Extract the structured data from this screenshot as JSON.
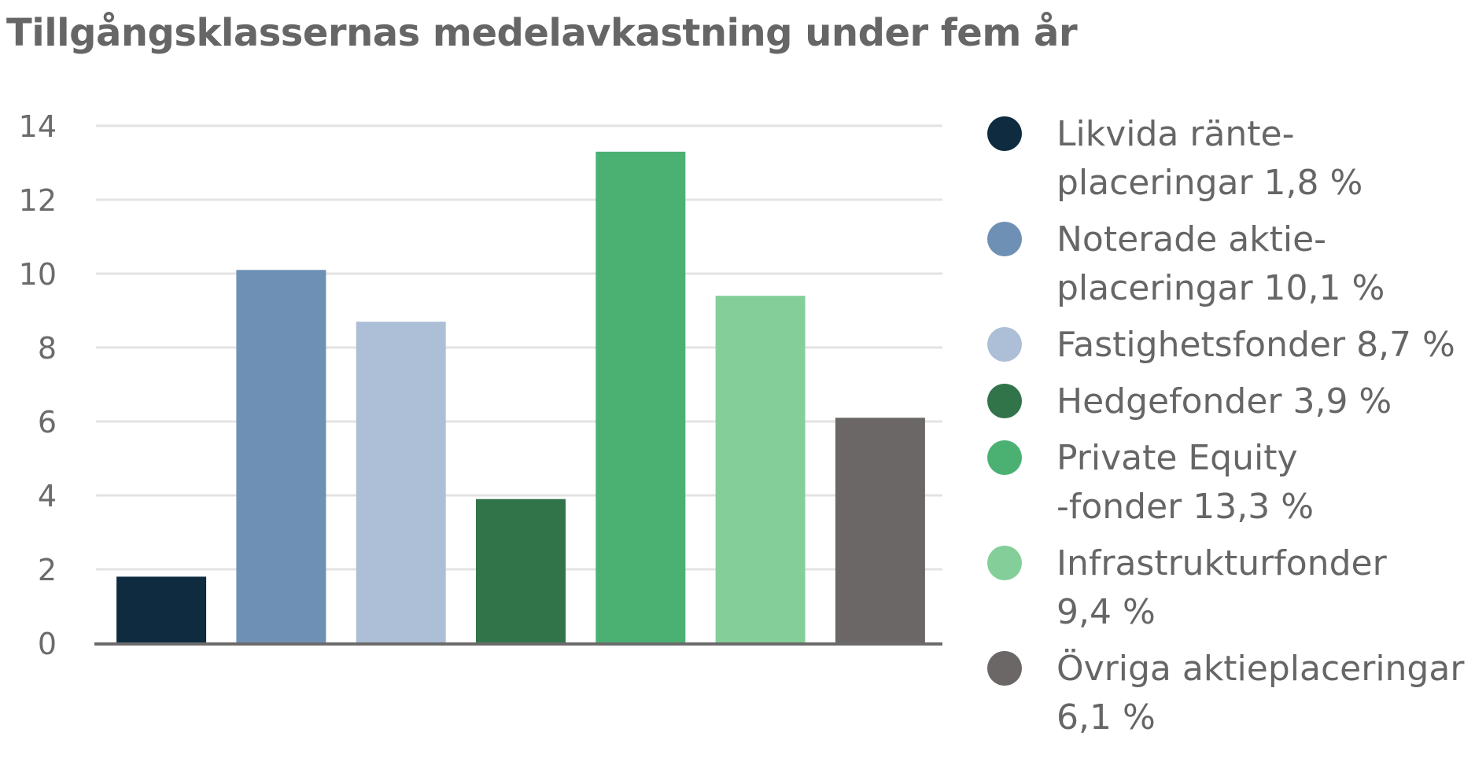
{
  "title": "Tillgångsklassernas medelavkastning under fem år",
  "chart_data": {
    "type": "bar",
    "title": "Tillgångsklassernas medelavkastning under fem år",
    "xlabel": "",
    "ylabel": "",
    "ylim": [
      0,
      14
    ],
    "yticks": [
      "0",
      "2",
      "4",
      "6",
      "8",
      "10",
      "12",
      "14"
    ],
    "grid": true,
    "legend_position": "right",
    "categories": [
      "Likvida ränte-\nplaceringar 1,8 %",
      "Noterade aktie-\nplaceringar 10,1 %",
      "Fastighetsfonder 8,7 %",
      "Hedgefonder 3,9 %",
      "Private Equity\n-fonder 13,3 %",
      "Infrastrukturfonder\n9,4 %",
      "Övriga aktieplaceringar\n6,1 %"
    ],
    "values": [
      1.8,
      10.1,
      8.7,
      3.9,
      13.3,
      9.4,
      6.1
    ],
    "colors": [
      "#0e2b40",
      "#6f90b5",
      "#adbfd6",
      "#31744a",
      "#4ab173",
      "#84cf99",
      "#6a6766"
    ]
  }
}
